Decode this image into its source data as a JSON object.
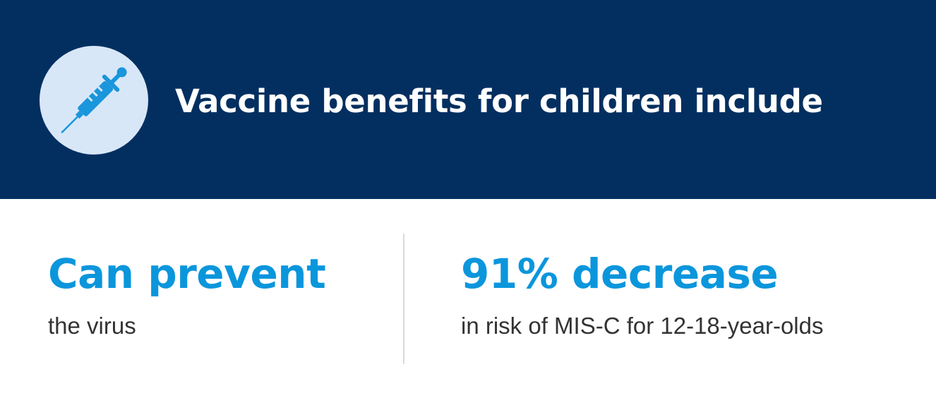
{
  "header": {
    "title": "Vaccine benefits for children include",
    "icon": "syringe-icon",
    "background_color": "#032f60",
    "icon_circle_color": "#d8e7f8",
    "icon_color": "#1a96dc"
  },
  "stats": [
    {
      "headline": "Can prevent",
      "caption": "the virus"
    },
    {
      "headline": "91% decrease",
      "caption": "in risk of MIS-C for 12-18-year-olds"
    }
  ],
  "colors": {
    "accent": "#0b96dc",
    "caption_text": "#333333",
    "divider": "#dadada"
  }
}
